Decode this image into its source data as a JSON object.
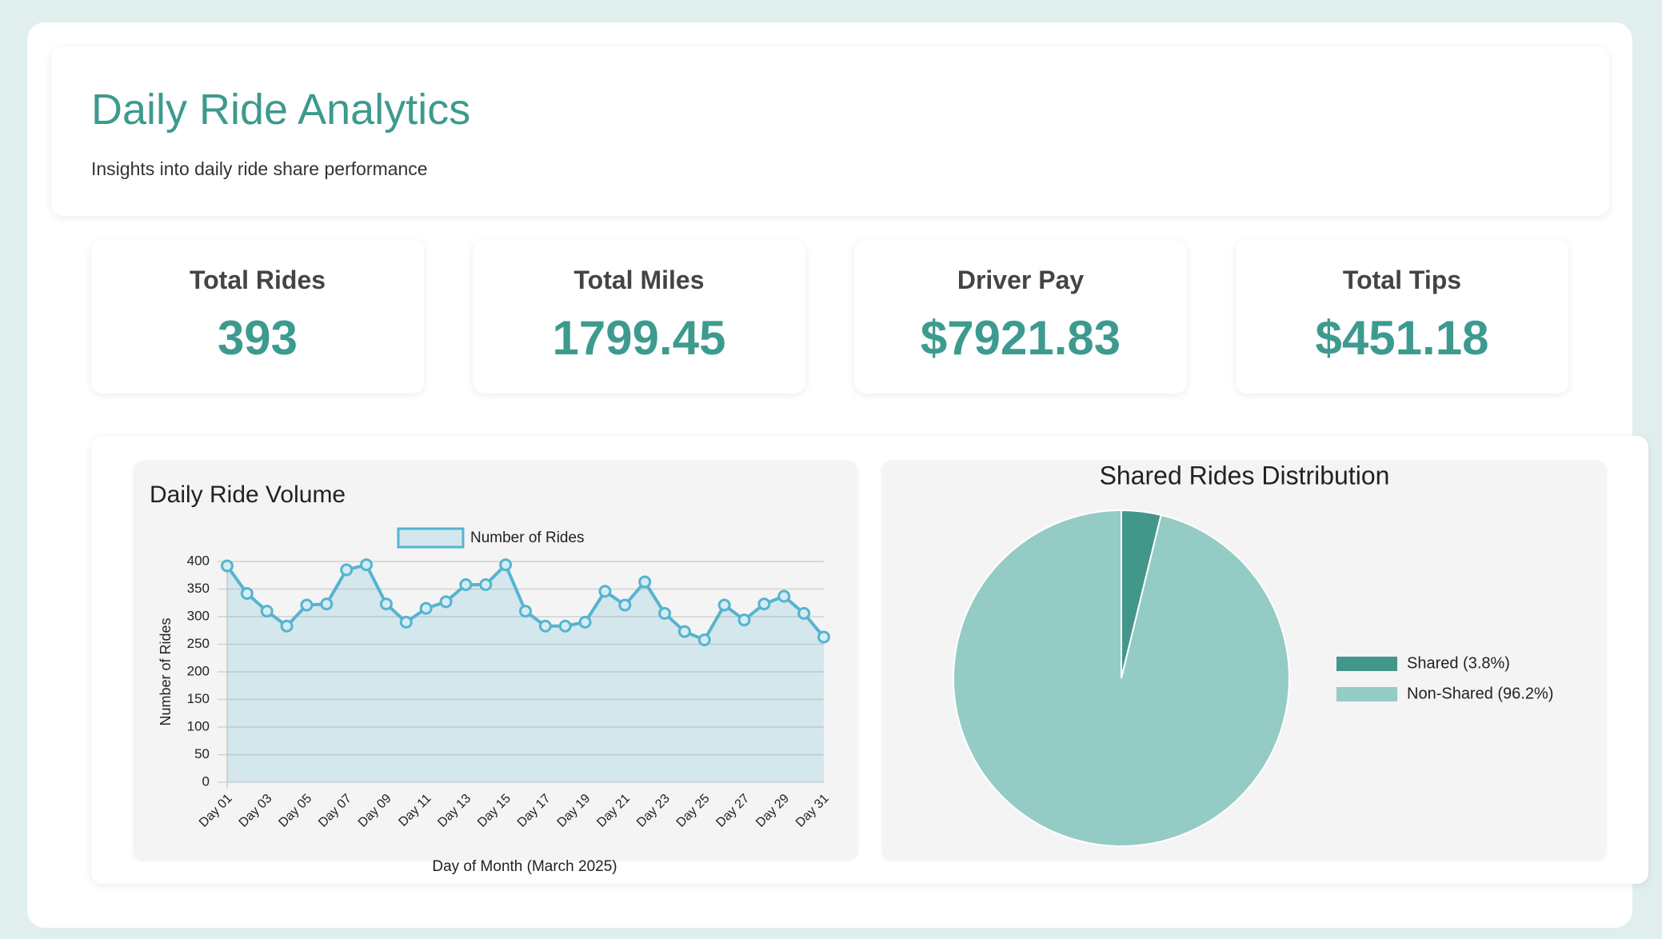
{
  "header": {
    "title": "Daily Ride Analytics",
    "subtitle": "Insights into daily ride share performance"
  },
  "stats": [
    {
      "label": "Total Rides",
      "value": "393"
    },
    {
      "label": "Total Miles",
      "value": "1799.45"
    },
    {
      "label": "Driver Pay",
      "value": "$7921.83"
    },
    {
      "label": "Total Tips",
      "value": "$451.18"
    }
  ],
  "chart_data": [
    {
      "type": "line",
      "title": "Daily Ride Volume",
      "x_label": "Day of Month (March 2025)",
      "y_label": "Number of Rides",
      "categories": [
        "Day 01",
        null,
        "Day 03",
        null,
        "Day 05",
        null,
        "Day 07",
        null,
        "Day 09",
        null,
        "Day 11",
        null,
        "Day 13",
        null,
        "Day 15",
        null,
        "Day 17",
        null,
        "Day 19",
        null,
        "Day 21",
        null,
        "Day 23",
        null,
        "Day 25",
        null,
        "Day 27",
        null,
        "Day 29",
        null,
        "Day 31"
      ],
      "series": [
        {
          "name": "Number of Rides",
          "color": "#56b4cf",
          "values": [
            392,
            342,
            310,
            283,
            321,
            323,
            385,
            394,
            323,
            290,
            315,
            327,
            358,
            358,
            394,
            310,
            283,
            283,
            290,
            346,
            321,
            363,
            306,
            273,
            258,
            321,
            294,
            323,
            337,
            306,
            263
          ]
        }
      ],
      "ylim": [
        0,
        400
      ],
      "yticks": [
        0,
        50,
        100,
        150,
        200,
        250,
        300,
        350,
        400
      ],
      "grid": true,
      "fill": true,
      "legend": "top"
    },
    {
      "type": "pie",
      "title": "Shared Rides Distribution",
      "labels": [
        "Shared (3.8%)",
        "Non-Shared (96.2%)"
      ],
      "values": [
        3.8,
        96.2
      ],
      "colors": [
        "#43968a",
        "#94cbc5"
      ],
      "legend": "right"
    }
  ]
}
